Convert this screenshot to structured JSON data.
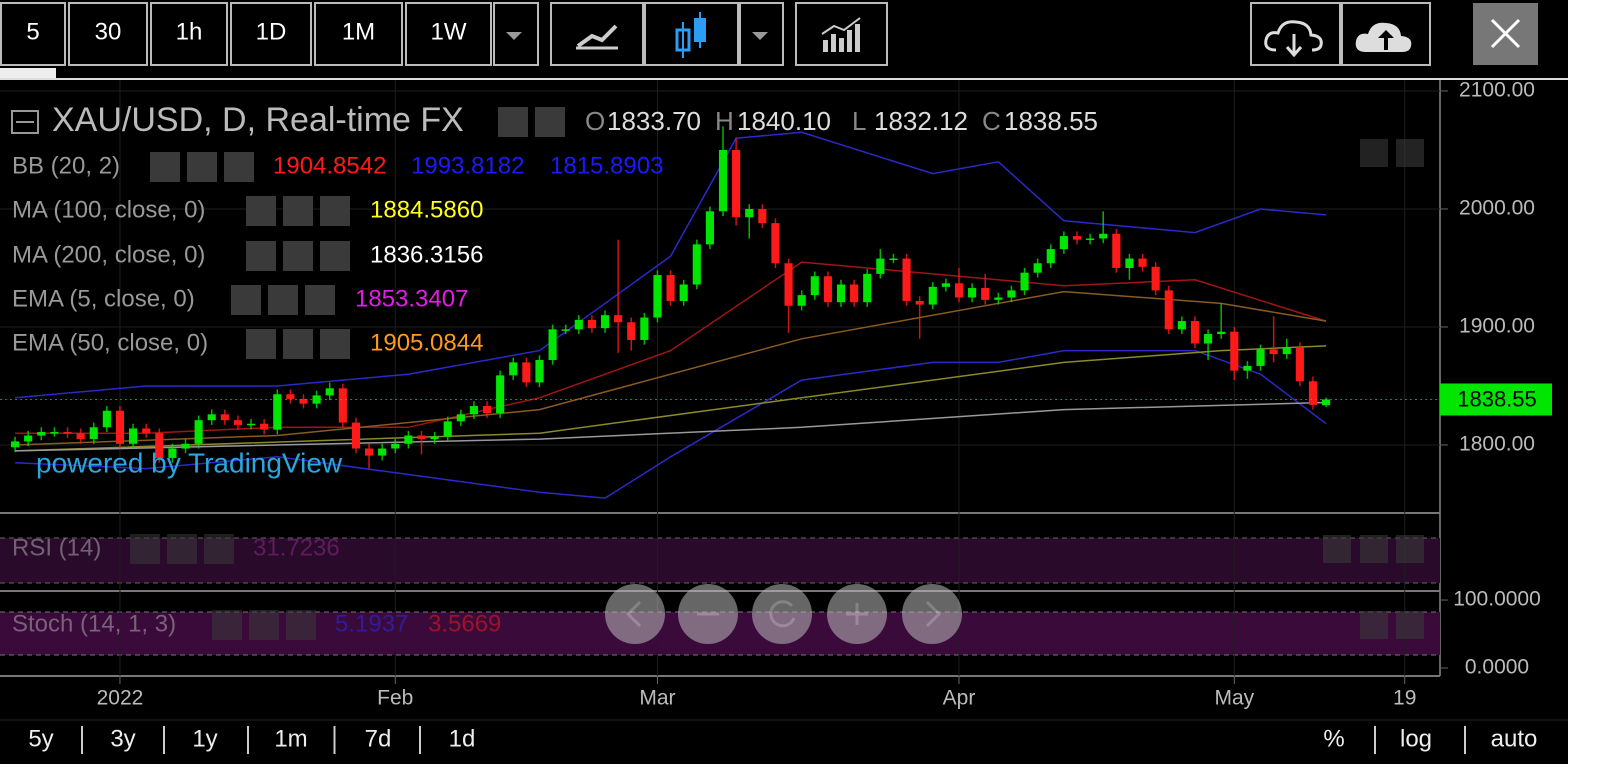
{
  "toolbar": {
    "intervals": [
      "5",
      "30",
      "1h",
      "1D",
      "1M",
      "1W"
    ],
    "active": "1D"
  },
  "legend": {
    "symbol": "XAU/USD, D, Real-time FX",
    "ohlc": [
      {
        "key": "O",
        "value": "1833.70"
      },
      {
        "key": "H",
        "value": "1840.10"
      },
      {
        "key": "L",
        "value": "1832.12"
      },
      {
        "key": "C",
        "value": "1838.55"
      }
    ],
    "indicators": [
      {
        "name": "BB (20, 2)",
        "values": [
          {
            "text": "1904.8542",
            "color": "#ff1a1a"
          },
          {
            "text": "1993.8182",
            "color": "#1a1aff"
          },
          {
            "text": "1815.8903",
            "color": "#1a1aff"
          }
        ]
      },
      {
        "name": "MA (100, close, 0)",
        "values": [
          {
            "text": "1884.5860",
            "color": "#ffff1a"
          }
        ]
      },
      {
        "name": "MA (200, close, 0)",
        "values": [
          {
            "text": "1836.3156",
            "color": "#ffffff"
          }
        ]
      },
      {
        "name": "EMA (5, close, 0)",
        "values": [
          {
            "text": "1853.3407",
            "color": "#e61ae6"
          }
        ]
      },
      {
        "name": "EMA (50, close, 0)",
        "values": [
          {
            "text": "1905.0844",
            "color": "#ff9a1a"
          }
        ]
      }
    ]
  },
  "watermark": "powered by TradingView",
  "chart_data": {
    "type": "candlestick",
    "up_color": "#00e600",
    "down_color": "#ff1a1a",
    "grid": true,
    "open": [
      1798,
      1803,
      1808,
      1811,
      1811,
      1810,
      1805,
      1815,
      1829,
      1801,
      1814,
      1810,
      1789,
      1797,
      1801,
      1821,
      1826,
      1821,
      1817,
      1818,
      1813,
      1843,
      1839,
      1835,
      1842,
      1848,
      1819,
      1797,
      1791,
      1797,
      1801,
      1808,
      1805,
      1807,
      1820,
      1826,
      1833,
      1827,
      1859,
      1870,
      1853,
      1872,
      1898,
      1898,
      1906,
      1899,
      1910,
      1904,
      1889,
      1908,
      1944,
      1922,
      1936,
      1970,
      1998,
      2050,
      1993,
      2000,
      1988,
      1954,
      1918,
      1927,
      1943,
      1921,
      1936,
      1921,
      1945,
      1958,
      1958,
      1922,
      1919,
      1934,
      1937,
      1925,
      1933,
      1923,
      1925,
      1931,
      1946,
      1954,
      1966,
      1977,
      1974,
      1975,
      1979,
      1950,
      1958,
      1951,
      1931,
      1898,
      1905,
      1886,
      1894,
      1896,
      1863,
      1867,
      1881,
      1877,
      1883,
      1854,
      1833.7
    ],
    "high": [
      1807,
      1812,
      1815,
      1815,
      1815,
      1814,
      1819,
      1833,
      1833,
      1818,
      1818,
      1814,
      1801,
      1805,
      1825,
      1830,
      1830,
      1825,
      1822,
      1822,
      1847,
      1847,
      1843,
      1846,
      1853,
      1852,
      1823,
      1801,
      1801,
      1805,
      1812,
      1812,
      1811,
      1824,
      1830,
      1837,
      1837,
      1863,
      1874,
      1874,
      1876,
      1902,
      1902,
      1910,
      1910,
      1914,
      1974,
      1908,
      1912,
      1948,
      1948,
      1940,
      1974,
      2002,
      2070,
      2060,
      2004,
      2004,
      1992,
      1958,
      1931,
      1947,
      1947,
      1940,
      1940,
      1949,
      1966,
      1962,
      1962,
      1926,
      1938,
      1941,
      1950,
      1937,
      1945,
      1929,
      1935,
      1950,
      1958,
      1970,
      1981,
      1981,
      1979,
      1998,
      1983,
      1962,
      1962,
      1955,
      1935,
      1909,
      1909,
      1898,
      1920,
      1900,
      1871,
      1885,
      1909,
      1890,
      1887,
      1858,
      1840.1
    ],
    "low": [
      1794,
      1799,
      1804,
      1807,
      1806,
      1801,
      1801,
      1811,
      1797,
      1797,
      1806,
      1785,
      1785,
      1793,
      1797,
      1817,
      1817,
      1813,
      1813,
      1809,
      1809,
      1835,
      1831,
      1831,
      1838,
      1815,
      1793,
      1780,
      1787,
      1793,
      1797,
      1792,
      1801,
      1803,
      1816,
      1822,
      1823,
      1823,
      1855,
      1849,
      1849,
      1868,
      1894,
      1894,
      1895,
      1895,
      1878,
      1880,
      1885,
      1904,
      1918,
      1918,
      1932,
      1966,
      1994,
      1986,
      1975,
      1984,
      1950,
      1895,
      1914,
      1923,
      1917,
      1917,
      1917,
      1917,
      1941,
      1954,
      1918,
      1890,
      1915,
      1930,
      1921,
      1921,
      1919,
      1919,
      1921,
      1927,
      1942,
      1950,
      1962,
      1970,
      1970,
      1971,
      1946,
      1940,
      1947,
      1927,
      1894,
      1894,
      1882,
      1872,
      1890,
      1855,
      1856,
      1863,
      1870,
      1873,
      1850,
      1830,
      1832.12
    ],
    "close": [
      1803,
      1808,
      1811,
      1811,
      1810,
      1805,
      1815,
      1829,
      1801,
      1814,
      1810,
      1789,
      1797,
      1801,
      1821,
      1826,
      1821,
      1817,
      1818,
      1813,
      1843,
      1839,
      1835,
      1842,
      1848,
      1819,
      1797,
      1791,
      1797,
      1801,
      1808,
      1805,
      1807,
      1820,
      1826,
      1833,
      1827,
      1859,
      1870,
      1853,
      1872,
      1898,
      1898,
      1906,
      1899,
      1910,
      1904,
      1889,
      1908,
      1944,
      1922,
      1936,
      1970,
      1998,
      2050,
      1993,
      2000,
      1988,
      1954,
      1918,
      1927,
      1943,
      1921,
      1936,
      1921,
      1945,
      1958,
      1958,
      1922,
      1919,
      1934,
      1937,
      1925,
      1933,
      1923,
      1925,
      1931,
      1946,
      1954,
      1966,
      1977,
      1974,
      1975,
      1979,
      1950,
      1958,
      1951,
      1931,
      1898,
      1905,
      1886,
      1894,
      1896,
      1863,
      1867,
      1881,
      1877,
      1883,
      1854,
      1834,
      1838.55
    ],
    "overlays": [
      {
        "color": "#2a2acc",
        "x": [
          0,
          10,
          20,
          30,
          40,
          50,
          55,
          60,
          70,
          75,
          80,
          90,
          95,
          100
        ],
        "values": [
          1840,
          1850,
          1850,
          1860,
          1880,
          1960,
          2060,
          2065,
          2030,
          2040,
          1990,
          1980,
          2000,
          1995
        ]
      },
      {
        "color": "#2a2acc",
        "x": [
          0,
          10,
          20,
          30,
          40,
          45,
          50,
          60,
          70,
          75,
          80,
          90,
          95,
          100
        ],
        "values": [
          1785,
          1780,
          1790,
          1775,
          1760,
          1755,
          1790,
          1855,
          1870,
          1870,
          1880,
          1880,
          1860,
          1818
        ]
      },
      {
        "color": "#a01515",
        "x": [
          0,
          10,
          20,
          30,
          40,
          50,
          60,
          70,
          80,
          90,
          100
        ],
        "values": [
          1810,
          1810,
          1815,
          1815,
          1840,
          1880,
          1955,
          1945,
          1935,
          1940,
          1905
        ]
      },
      {
        "color": "#8a8a2a",
        "x": [
          0,
          40,
          60,
          80,
          92,
          100
        ],
        "values": [
          1795,
          1810,
          1840,
          1870,
          1880,
          1884
        ]
      },
      {
        "color": "#999999",
        "x": [
          0,
          40,
          60,
          80,
          100
        ],
        "values": [
          1795,
          1805,
          1815,
          1830,
          1836
        ]
      },
      {
        "color": "#8a5a20",
        "x": [
          0,
          20,
          40,
          60,
          80,
          92,
          100
        ],
        "values": [
          1800,
          1808,
          1830,
          1890,
          1930,
          1920,
          1905
        ]
      }
    ],
    "xlim": [
      -1.15,
      108.69
    ],
    "xticks": [
      {
        "value": 8,
        "label": "2022"
      },
      {
        "value": 29,
        "label": "Feb"
      },
      {
        "value": 49,
        "label": "Mar"
      },
      {
        "value": 72,
        "label": "Apr"
      },
      {
        "value": 93,
        "label": "May"
      },
      {
        "value": 106,
        "label": "19"
      }
    ],
    "ylim": [
      1743.2,
      2109.3
    ],
    "yticks": [
      {
        "value": 1800,
        "label": "1800.00"
      },
      {
        "value": 1900,
        "label": "1900.00"
      },
      {
        "value": 2000,
        "label": "2000.00"
      },
      {
        "value": 2100,
        "label": "2100.00"
      }
    ]
  },
  "panes": [
    {
      "label": "RSI (14)",
      "values": [
        {
          "text": "31.7236",
          "color": "#8a2a8a"
        }
      ]
    },
    {
      "label": "Stoch (14, 1, 3)",
      "values": [
        {
          "text": "5.1937",
          "color": "#2a2aee"
        },
        {
          "text": "3.5669",
          "color": "#ee1a1a"
        }
      ],
      "ylim": [
        -10.3,
        111.8
      ],
      "yticks": [
        {
          "value": 100,
          "label": "100.0000"
        },
        {
          "value": 0,
          "label": "0.0000"
        }
      ]
    }
  ],
  "ranges": [
    "5y",
    "3y",
    "1y",
    "1m",
    "7d",
    "1d"
  ],
  "scale_options": [
    "%",
    "log",
    "auto"
  ],
  "active_scale": "auto"
}
